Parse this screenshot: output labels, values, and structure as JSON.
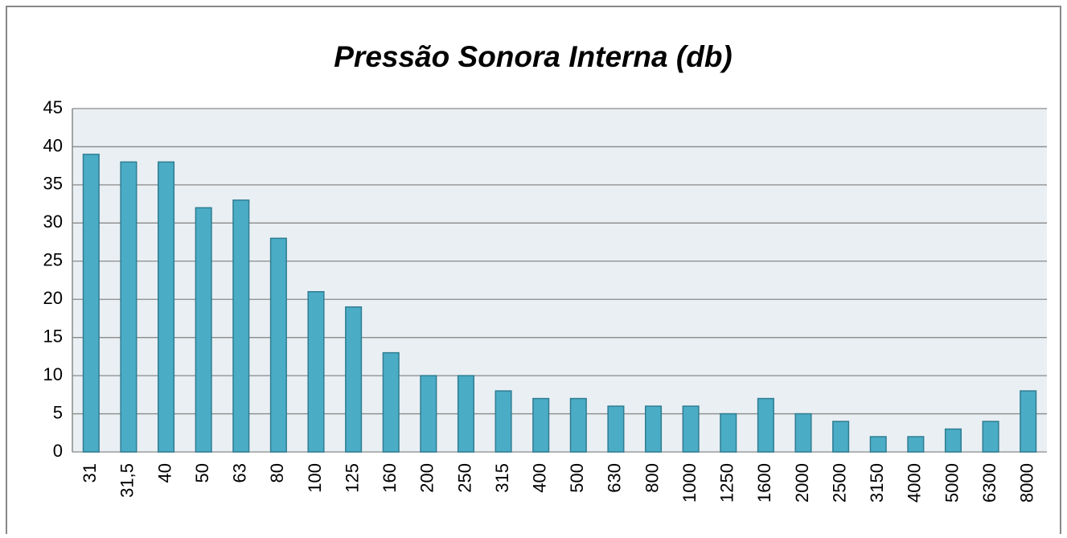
{
  "chart_data": {
    "type": "bar",
    "title": "Pressão Sonora Interna (db)",
    "categories": [
      "31",
      "31,5",
      "40",
      "50",
      "63",
      "80",
      "100",
      "125",
      "160",
      "200",
      "250",
      "315",
      "400",
      "500",
      "630",
      "800",
      "1000",
      "1250",
      "1600",
      "2000",
      "2500",
      "3150",
      "4000",
      "5000",
      "6300",
      "8000"
    ],
    "values": [
      39,
      38,
      38,
      32,
      33,
      28,
      21,
      19,
      13,
      10,
      10,
      8,
      7,
      7,
      6,
      6,
      6,
      5,
      7,
      5,
      4,
      2,
      2,
      3,
      4,
      8
    ],
    "color": "#4bacc6",
    "ylim": [
      0,
      45
    ],
    "yticks": [
      0,
      5,
      10,
      15,
      20,
      25,
      30,
      35,
      40,
      45
    ],
    "grid": true
  }
}
